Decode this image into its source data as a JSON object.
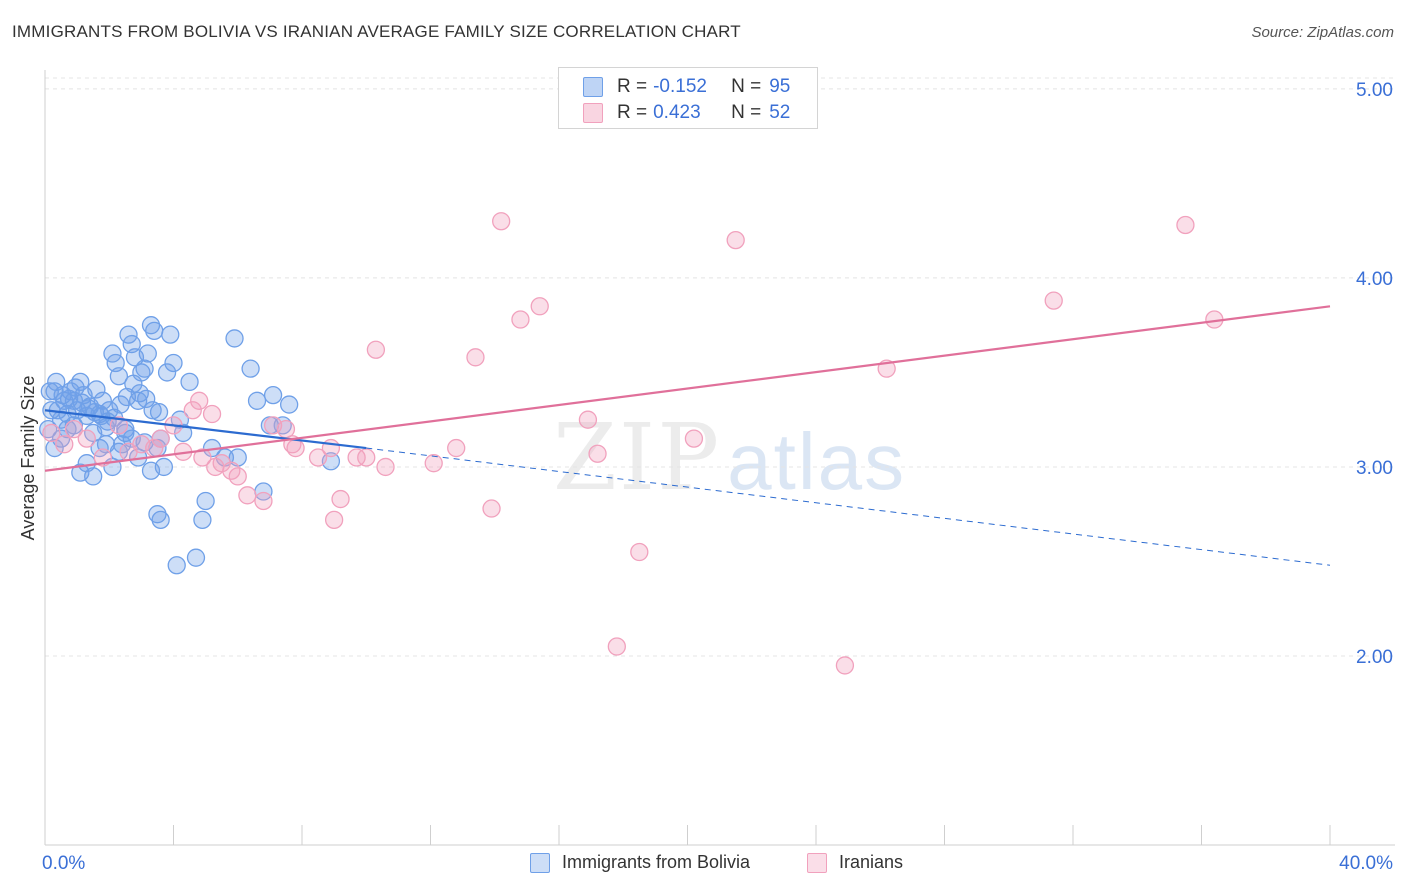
{
  "header": {
    "title": "IMMIGRANTS FROM BOLIVIA VS IRANIAN AVERAGE FAMILY SIZE CORRELATION CHART",
    "source": "Source: ZipAtlas.com"
  },
  "watermark": {
    "zip": "ZIP",
    "atlas": "atlas"
  },
  "legend": {
    "rows": [
      {
        "r_label": "R =",
        "r_value": "-0.152",
        "n_label": "N =",
        "n_value": "95",
        "color": "#6fa0e8"
      },
      {
        "r_label": "R =",
        "r_value": "0.423",
        "n_label": "N =",
        "n_value": "52",
        "color": "#f1a1bd"
      }
    ]
  },
  "bottom_legend": {
    "items": [
      {
        "label": "Immigrants from Bolivia",
        "color": "#6fa0e8"
      },
      {
        "label": "Iranians",
        "color": "#f1a1bd"
      }
    ]
  },
  "chart_data": {
    "type": "scatter",
    "title": "IMMIGRANTS FROM BOLIVIA VS IRANIAN AVERAGE FAMILY SIZE CORRELATION CHART",
    "xlabel": "",
    "ylabel": "Average Family Size",
    "xlim": [
      0,
      40
    ],
    "ylim": [
      1.0,
      5.1
    ],
    "x_tick_labels": [
      "0.0%",
      "40.0%"
    ],
    "y_ticks": [
      2.0,
      3.0,
      4.0,
      5.0
    ],
    "y_tick_labels": [
      "2.00",
      "3.00",
      "4.00",
      "5.00"
    ],
    "grid": "horizontal dashed",
    "legend_position": "top-center",
    "series": [
      {
        "name": "Immigrants from Bolivia",
        "color": "#6fa0e8",
        "line_color": "#2c6bd0",
        "trend": {
          "x_start": 0,
          "y_start": 3.3,
          "x_solid_end": 10,
          "y_solid_end": 3.1,
          "x_end": 40,
          "y_end": 2.48
        },
        "points": [
          [
            0.1,
            3.2
          ],
          [
            0.2,
            3.3
          ],
          [
            0.3,
            3.4
          ],
          [
            0.4,
            3.3
          ],
          [
            0.5,
            3.25
          ],
          [
            0.6,
            3.35
          ],
          [
            0.7,
            3.28
          ],
          [
            0.8,
            3.4
          ],
          [
            0.9,
            3.22
          ],
          [
            1.0,
            3.3
          ],
          [
            1.1,
            3.45
          ],
          [
            1.2,
            3.38
          ],
          [
            1.3,
            3.27
          ],
          [
            1.4,
            3.32
          ],
          [
            1.5,
            3.18
          ],
          [
            1.6,
            3.41
          ],
          [
            1.7,
            3.28
          ],
          [
            1.8,
            3.35
          ],
          [
            1.9,
            3.21
          ],
          [
            2.0,
            3.3
          ],
          [
            2.1,
            3.6
          ],
          [
            2.2,
            3.55
          ],
          [
            2.3,
            3.48
          ],
          [
            2.4,
            3.12
          ],
          [
            2.5,
            3.18
          ],
          [
            2.6,
            3.7
          ],
          [
            2.7,
            3.65
          ],
          [
            2.8,
            3.58
          ],
          [
            2.9,
            3.35
          ],
          [
            3.0,
            3.5
          ],
          [
            3.1,
            3.52
          ],
          [
            3.2,
            3.6
          ],
          [
            3.3,
            3.75
          ],
          [
            3.4,
            3.72
          ],
          [
            3.5,
            3.1
          ],
          [
            3.6,
            3.15
          ],
          [
            3.7,
            3.0
          ],
          [
            3.8,
            3.5
          ],
          [
            3.9,
            3.7
          ],
          [
            4.0,
            3.55
          ],
          [
            0.3,
            3.1
          ],
          [
            0.5,
            3.15
          ],
          [
            0.7,
            3.2
          ],
          [
            0.9,
            3.35
          ],
          [
            1.1,
            2.97
          ],
          [
            1.3,
            3.02
          ],
          [
            1.5,
            2.95
          ],
          [
            1.7,
            3.1
          ],
          [
            1.9,
            3.12
          ],
          [
            2.1,
            3.0
          ],
          [
            2.3,
            3.08
          ],
          [
            2.5,
            3.2
          ],
          [
            2.7,
            3.15
          ],
          [
            2.9,
            3.05
          ],
          [
            3.1,
            3.13
          ],
          [
            3.3,
            2.98
          ],
          [
            3.5,
            2.75
          ],
          [
            3.6,
            2.72
          ],
          [
            4.1,
            2.48
          ],
          [
            4.2,
            3.25
          ],
          [
            4.5,
            3.45
          ],
          [
            4.7,
            2.52
          ],
          [
            4.9,
            2.72
          ],
          [
            5.0,
            2.82
          ],
          [
            5.2,
            3.1
          ],
          [
            5.6,
            3.05
          ],
          [
            5.9,
            3.68
          ],
          [
            6.0,
            3.05
          ],
          [
            6.4,
            3.52
          ],
          [
            6.6,
            3.35
          ],
          [
            6.8,
            2.87
          ],
          [
            7.0,
            3.22
          ],
          [
            7.1,
            3.38
          ],
          [
            7.4,
            3.22
          ],
          [
            7.6,
            3.33
          ],
          [
            0.15,
            3.4
          ],
          [
            0.35,
            3.45
          ],
          [
            0.55,
            3.38
          ],
          [
            0.75,
            3.36
          ],
          [
            0.95,
            3.42
          ],
          [
            1.15,
            3.34
          ],
          [
            1.35,
            3.31
          ],
          [
            1.55,
            3.29
          ],
          [
            1.75,
            3.27
          ],
          [
            1.95,
            3.24
          ],
          [
            2.15,
            3.26
          ],
          [
            2.35,
            3.33
          ],
          [
            2.55,
            3.37
          ],
          [
            2.75,
            3.44
          ],
          [
            2.95,
            3.39
          ],
          [
            3.15,
            3.36
          ],
          [
            3.35,
            3.3
          ],
          [
            3.55,
            3.29
          ],
          [
            8.9,
            3.03
          ],
          [
            4.3,
            3.18
          ]
        ]
      },
      {
        "name": "Iranians",
        "color": "#f1a1bd",
        "line_color": "#e0709a",
        "trend": {
          "x_start": 0,
          "y_start": 2.98,
          "x_end": 40,
          "y_end": 3.85
        },
        "points": [
          [
            0.2,
            3.18
          ],
          [
            0.6,
            3.12
          ],
          [
            0.9,
            3.2
          ],
          [
            1.3,
            3.15
          ],
          [
            1.8,
            3.05
          ],
          [
            2.3,
            3.22
          ],
          [
            2.6,
            3.08
          ],
          [
            3.0,
            3.12
          ],
          [
            3.4,
            3.1
          ],
          [
            3.6,
            3.15
          ],
          [
            4.0,
            3.22
          ],
          [
            4.3,
            3.08
          ],
          [
            4.6,
            3.3
          ],
          [
            4.8,
            3.35
          ],
          [
            4.9,
            3.05
          ],
          [
            5.3,
            3.0
          ],
          [
            5.5,
            3.02
          ],
          [
            5.8,
            2.98
          ],
          [
            5.2,
            3.28
          ],
          [
            6.0,
            2.95
          ],
          [
            6.3,
            2.85
          ],
          [
            6.8,
            2.82
          ],
          [
            7.1,
            3.22
          ],
          [
            7.5,
            3.2
          ],
          [
            7.8,
            3.1
          ],
          [
            7.7,
            3.12
          ],
          [
            8.5,
            3.05
          ],
          [
            8.9,
            3.1
          ],
          [
            9.0,
            2.72
          ],
          [
            9.2,
            2.83
          ],
          [
            9.7,
            3.05
          ],
          [
            10.0,
            3.05
          ],
          [
            10.3,
            3.62
          ],
          [
            10.6,
            3.0
          ],
          [
            12.1,
            3.02
          ],
          [
            12.8,
            3.1
          ],
          [
            13.4,
            3.58
          ],
          [
            13.9,
            2.78
          ],
          [
            14.2,
            4.3
          ],
          [
            14.8,
            3.78
          ],
          [
            15.4,
            3.85
          ],
          [
            16.9,
            3.25
          ],
          [
            17.2,
            3.07
          ],
          [
            17.8,
            2.05
          ],
          [
            18.5,
            2.55
          ],
          [
            20.2,
            3.15
          ],
          [
            21.5,
            4.2
          ],
          [
            24.9,
            1.95
          ],
          [
            26.2,
            3.52
          ],
          [
            31.4,
            3.88
          ],
          [
            35.5,
            4.28
          ],
          [
            36.4,
            3.78
          ]
        ]
      }
    ]
  }
}
